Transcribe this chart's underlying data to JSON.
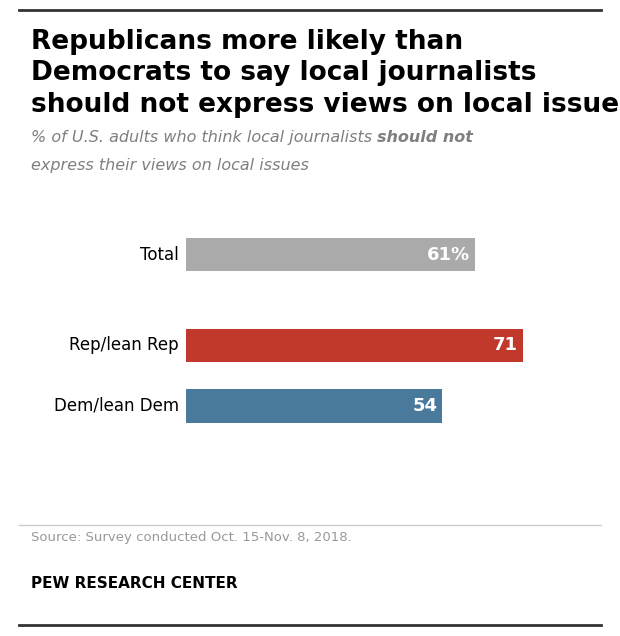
{
  "title_line1": "Republicans more likely than",
  "title_line2": "Democrats to say local journalists",
  "title_line3": "should not express views on local issues",
  "subtitle_part1": "% of U.S. adults who think local journalists ",
  "subtitle_bold": "should not",
  "subtitle_part2": "express their views on local issues",
  "categories": [
    "Total",
    "Rep/lean Rep",
    "Dem/lean Dem"
  ],
  "values": [
    61,
    71,
    54
  ],
  "labels": [
    "61%",
    "71",
    "54"
  ],
  "colors": [
    "#aaaaaa",
    "#c0392b",
    "#4a7a9b"
  ],
  "source": "Source: Survey conducted Oct. 15-Nov. 8, 2018.",
  "footer": "PEW RESEARCH CENTER",
  "background_color": "#ffffff",
  "xlim": [
    0,
    85
  ]
}
